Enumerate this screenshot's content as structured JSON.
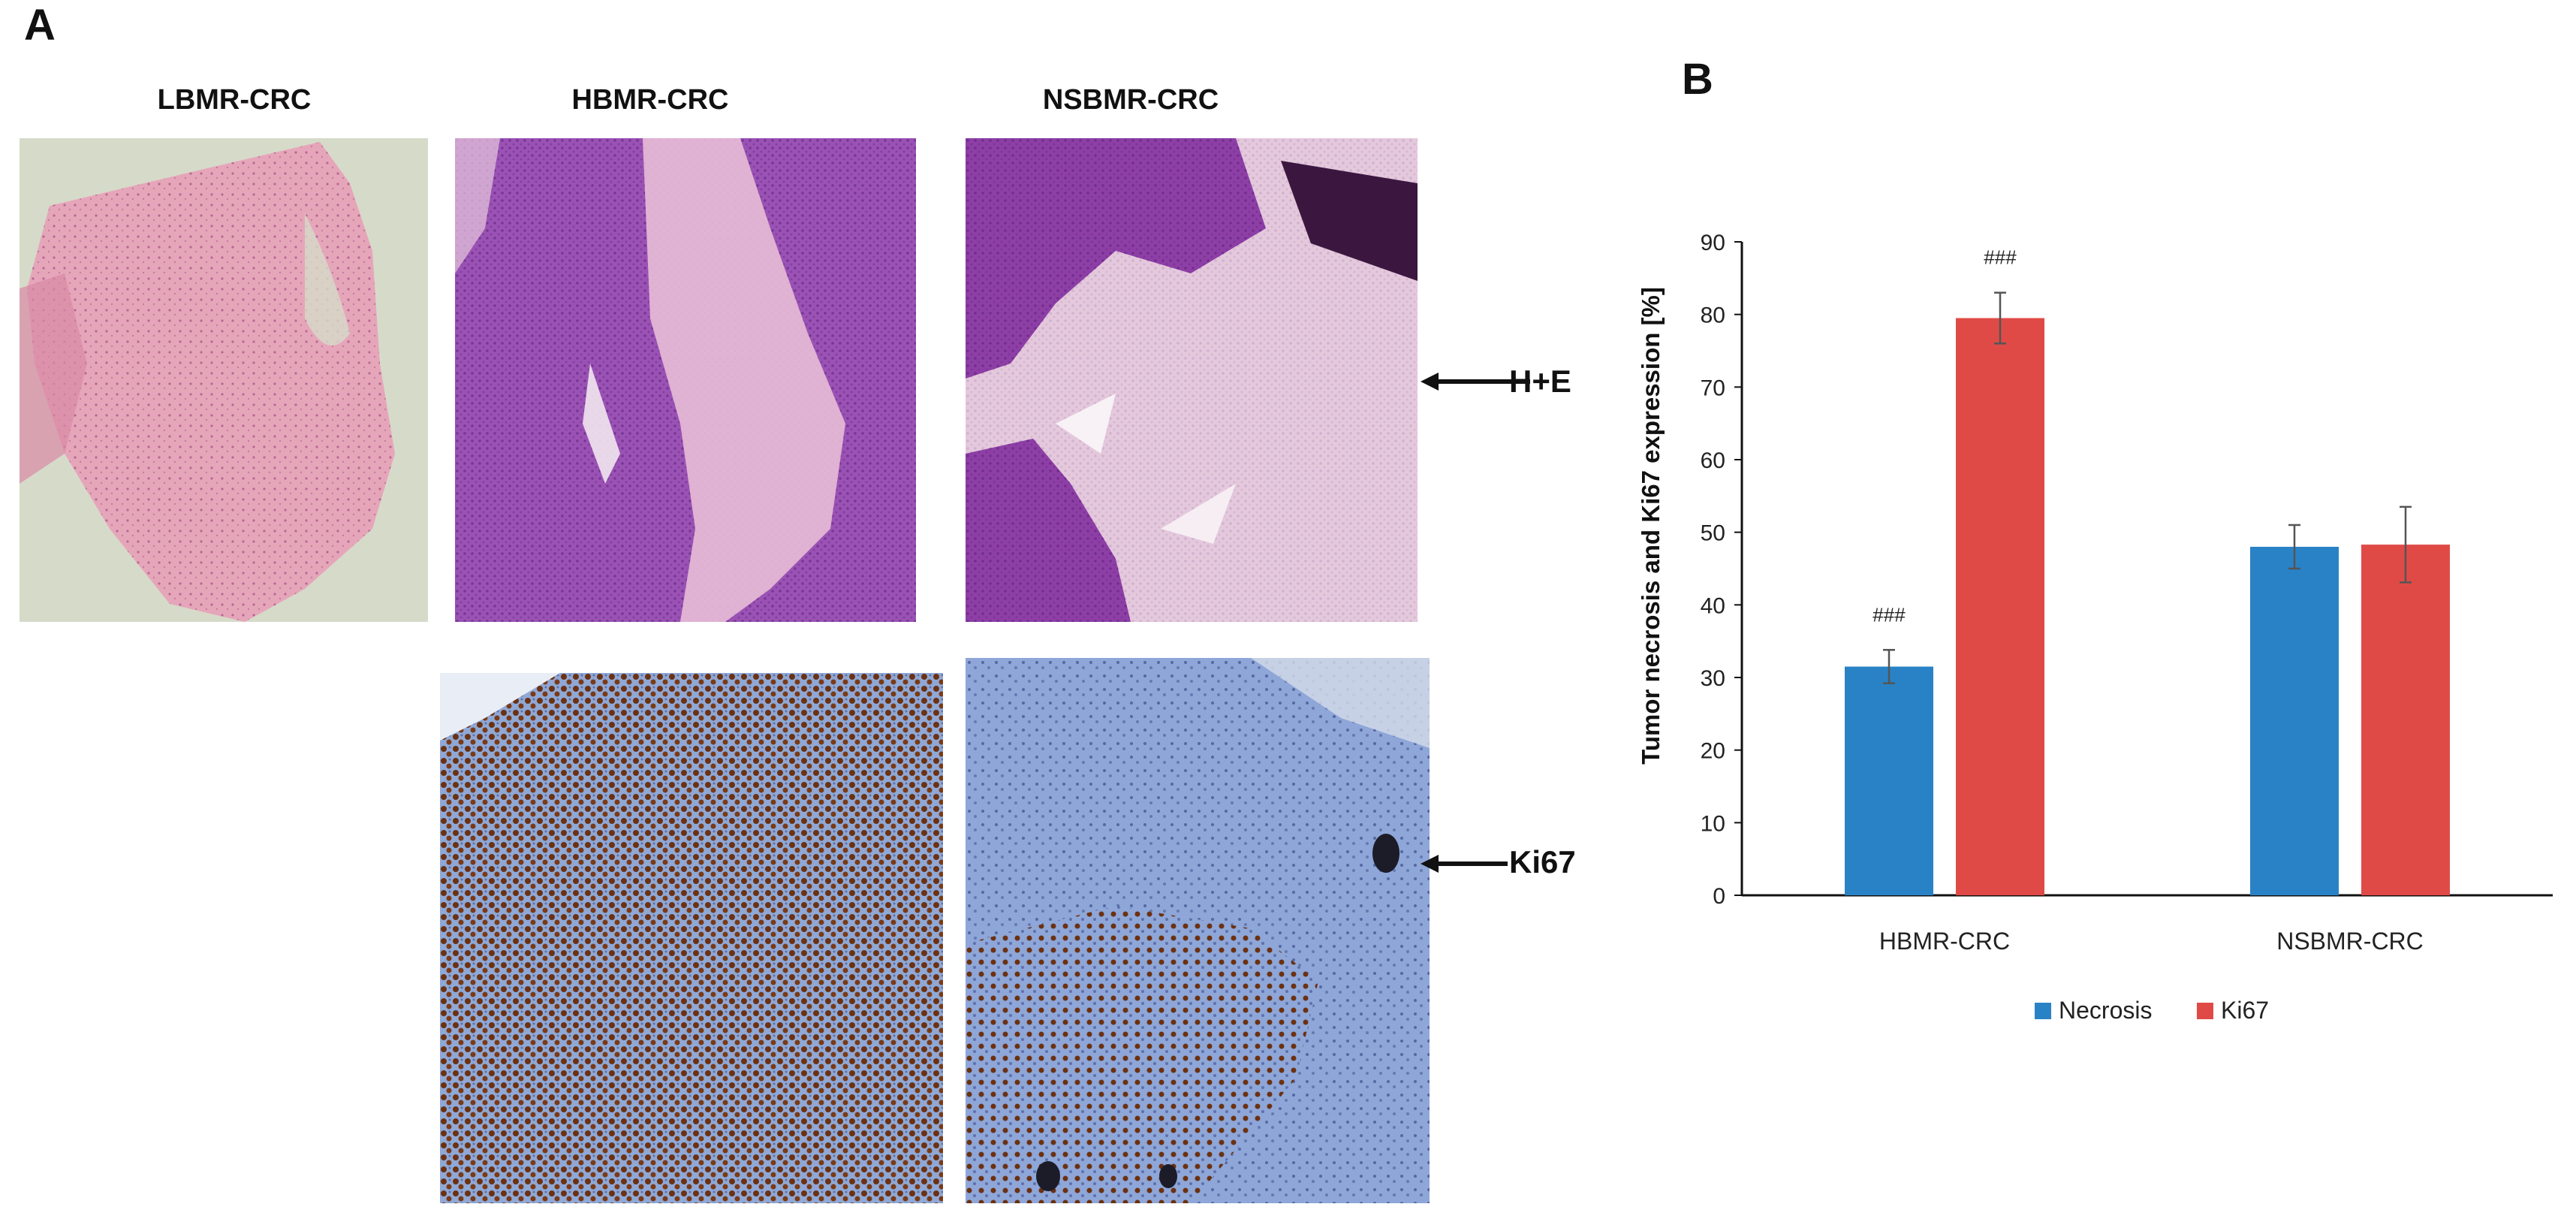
{
  "panel_a": {
    "letter": "A",
    "columns": [
      "LBMR-CRC",
      "HBMR-CRC",
      "NSBMR-CRC"
    ],
    "row_labels": {
      "he": "H+E",
      "ki67": "Ki67"
    }
  },
  "panel_b": {
    "letter": "B"
  },
  "colors": {
    "necrosis": "#2a82c6",
    "ki67": "#e04a46",
    "he_pink": "#e9b0c4",
    "he_purple": "#8a3fa3",
    "ki_blue": "#8aa6d8",
    "ki_brown": "#6b3112"
  },
  "chart_data": {
    "type": "bar",
    "categories": [
      "HBMR-CRC",
      "NSBMR-CRC"
    ],
    "series": [
      {
        "name": "Necrosis",
        "values": [
          31.5,
          48.0
        ],
        "errors": [
          2.3,
          3.0
        ],
        "annotations": [
          "###",
          ""
        ]
      },
      {
        "name": "Ki67",
        "values": [
          79.5,
          48.3
        ],
        "errors": [
          3.5,
          5.2
        ],
        "annotations": [
          "###",
          ""
        ]
      }
    ],
    "title": "",
    "xlabel": "",
    "ylabel": "Tumor necrosis and Ki67 expression [%]",
    "ylim": [
      0,
      90
    ],
    "yticks": [
      0,
      10,
      20,
      30,
      40,
      50,
      60,
      70,
      80,
      90
    ],
    "grid": false,
    "legend": "bottom-center"
  }
}
